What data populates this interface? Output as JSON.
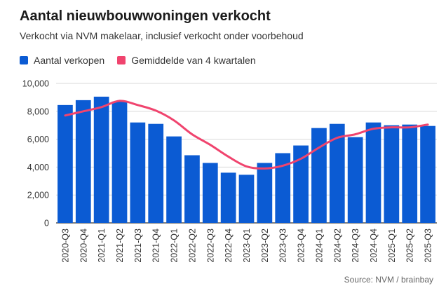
{
  "title": "Aantal nieuwbouwwoningen verkocht",
  "subtitle": "Verkocht via NVM makelaar, inclusief verkocht onder voorbehoud",
  "source": "Source: NVM / brainbay",
  "colors": {
    "bars": "#0b5bd3",
    "line": "#f0446e",
    "grid": "#d9d9d9",
    "axis": "#333333"
  },
  "legend": [
    {
      "label": "Aantal verkopen",
      "color": "#0b5bd3"
    },
    {
      "label": "Gemiddelde van 4 kwartalen",
      "color": "#f0446e"
    }
  ],
  "chart_data": {
    "type": "bar",
    "title": "Aantal nieuwbouwwoningen verkocht",
    "ylim": [
      0,
      10000
    ],
    "yticks": [
      "0",
      "2,000",
      "4,000",
      "6,000",
      "8,000",
      "10,000"
    ],
    "ytick_values": [
      0,
      2000,
      4000,
      6000,
      8000,
      10000
    ],
    "grid": true,
    "legend_position": "top-left",
    "categories": [
      "2020-Q3",
      "2020-Q4",
      "2021-Q1",
      "2021-Q2",
      "2021-Q3",
      "2021-Q4",
      "2022-Q1",
      "2022-Q2",
      "2022-Q3",
      "2022-Q4",
      "2023-Q1",
      "2023-Q2",
      "2023-Q3",
      "2023-Q4",
      "2024-Q1",
      "2024-Q2",
      "2024-Q3",
      "2024-Q4",
      "2025-Q1",
      "2025-Q2",
      "2025-Q3"
    ],
    "series": [
      {
        "name": "Aantal verkopen",
        "type": "bar",
        "values": [
          8450,
          8800,
          9050,
          8700,
          7200,
          7100,
          6200,
          4850,
          4300,
          3600,
          3450,
          4300,
          5000,
          5550,
          6800,
          7100,
          6150,
          7200,
          7000,
          7050,
          6950
        ]
      },
      {
        "name": "Gemiddelde van 4 kwartalen",
        "type": "line",
        "values": [
          7700,
          8000,
          8300,
          8750,
          8450,
          8050,
          7350,
          6350,
          5600,
          4750,
          4050,
          3900,
          4100,
          4600,
          5400,
          6100,
          6350,
          6750,
          6850,
          6850,
          7050
        ]
      }
    ]
  }
}
